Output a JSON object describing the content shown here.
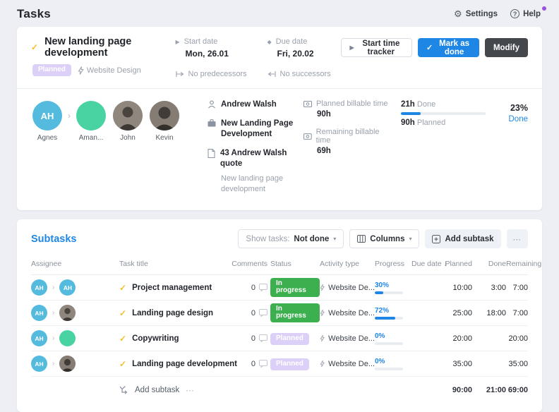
{
  "page_title": "Tasks",
  "icons": {
    "gear": "⚙",
    "help": "?",
    "caret_down": "▾",
    "chevron_right": "›",
    "sort_desc": "↓",
    "ellipsis": "⋯",
    "check": "✓",
    "play": "▶",
    "diamond": "◆"
  },
  "topbar": {
    "settings": "Settings",
    "help": "Help"
  },
  "task": {
    "title": "New landing page development",
    "badge": "Planned",
    "project": "Website Design",
    "start": {
      "label": "Start date",
      "value": "Mon, 26.01"
    },
    "due": {
      "label": "Due date",
      "value": "Fri, 20.02"
    },
    "predecessors": "No predecessors",
    "successors": "No successors",
    "actions": {
      "start_timer": "Start time tracker",
      "mark_done": "Mark as done",
      "modify": "Modify"
    },
    "assignees": [
      {
        "name": "Agnes",
        "initials": "AH"
      },
      {
        "name": "Aman..."
      },
      {
        "name": "John"
      },
      {
        "name": "Kevin"
      }
    ],
    "details": {
      "owner": "Andrew Walsh",
      "project_name": "New Landing Page Development",
      "quote": "43 Andrew Walsh quote",
      "quote_sub": "New landing page development"
    },
    "billable": {
      "planned_label": "Planned billable time",
      "planned_value": "90h",
      "remaining_label": "Remaining billable time",
      "remaining_value": "69h"
    },
    "progress": {
      "done_value": "21h",
      "done_label": "Done",
      "planned_value": "90h",
      "planned_label": "Planned",
      "percent_label": "23%",
      "percent_sub": "Done",
      "percent": 23
    }
  },
  "subtasks": {
    "heading": "Subtasks",
    "show_tasks": {
      "label": "Show tasks:",
      "value": "Not done"
    },
    "columns_button": "Columns",
    "add_button": "Add subtask",
    "headers": {
      "assignee": "Assignee",
      "title": "Task title",
      "comments": "Comments",
      "status": "Status",
      "activity": "Activity type",
      "progress": "Progress",
      "due": "Due date",
      "planned": "Planned",
      "done": "Done",
      "remaining": "Remaining"
    },
    "rows": [
      {
        "assignee_initials": "AH",
        "assignee2_initials": "AH",
        "title": "Project management",
        "comments": "0",
        "status": "In progress",
        "activity": "Website De...",
        "progress_label": "30%",
        "progress": 30,
        "due": "",
        "planned": "10:00",
        "done": "3:00",
        "remaining": "7:00"
      },
      {
        "assignee_initials": "AH",
        "title": "Landing page design",
        "comments": "0",
        "status": "In progress",
        "activity": "Website De...",
        "progress_label": "72%",
        "progress": 72,
        "due": "",
        "planned": "25:00",
        "done": "18:00",
        "remaining": "7:00"
      },
      {
        "assignee_initials": "AH",
        "title": "Copywriting",
        "comments": "0",
        "status": "Planned",
        "activity": "Website De...",
        "progress_label": "0%",
        "progress": 0,
        "due": "",
        "planned": "20:00",
        "done": "",
        "remaining": "20:00"
      },
      {
        "assignee_initials": "AH",
        "title": "Landing page development",
        "comments": "0",
        "status": "Planned",
        "activity": "Website De...",
        "progress_label": "0%",
        "progress": 0,
        "due": "",
        "planned": "35:00",
        "done": "",
        "remaining": "35:00"
      }
    ],
    "footer": {
      "add_label": "Add subtask",
      "planned_total": "90:00",
      "done_total": "21:00",
      "remaining_total": "69:00"
    }
  },
  "colors": {
    "accent_blue": "#1e87e6",
    "green": "#3cb04f",
    "purple_badge": "#dcd0f8",
    "yellow_check": "#f6be28",
    "avatar_blue": "#55bbde",
    "avatar_green": "#49d3a2",
    "dark_button": "#44484d"
  }
}
